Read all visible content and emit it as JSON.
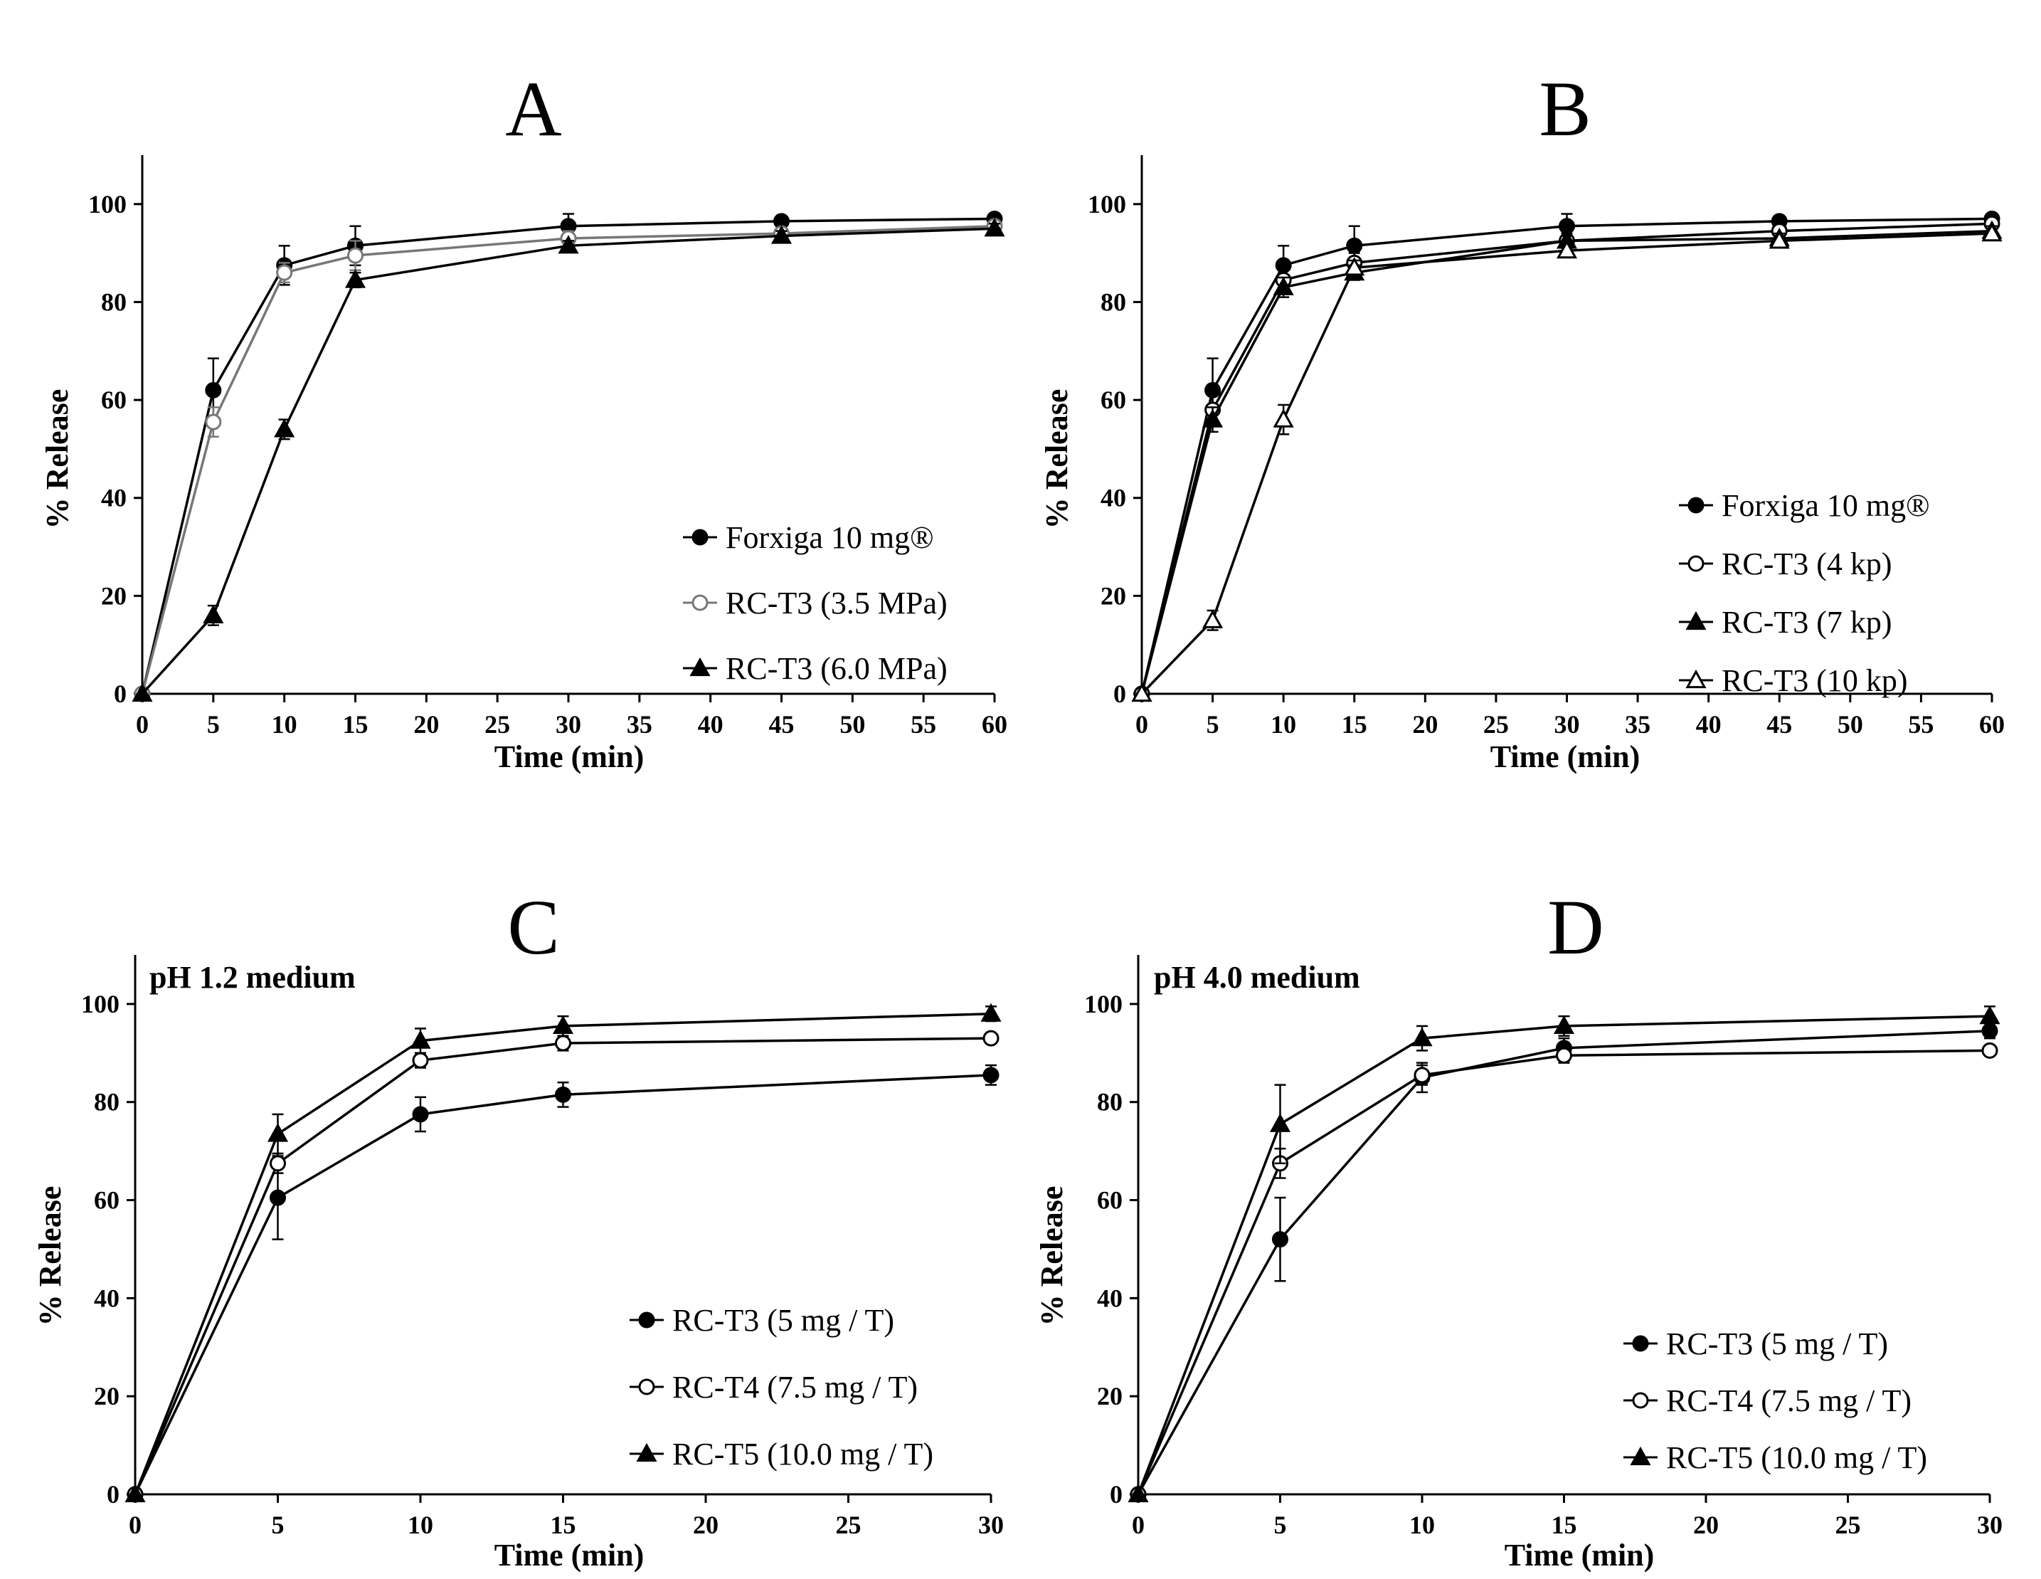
{
  "chart_data": [
    {
      "type": "line",
      "panel": "A",
      "title": "A",
      "xlabel": "Time (min)",
      "ylabel": "% Release",
      "xlim": [
        0,
        60
      ],
      "ylim": [
        0,
        110
      ],
      "xticks": [
        0,
        5,
        10,
        15,
        20,
        25,
        30,
        35,
        40,
        45,
        50,
        55,
        60
      ],
      "yticks": [
        0,
        20,
        40,
        60,
        80,
        100
      ],
      "annotation": "",
      "legend_position": "bottom-right",
      "series": [
        {
          "name": "Forxiga 10 mg®",
          "marker": "circle-filled",
          "color": "#000000",
          "x": [
            0,
            5,
            10,
            15,
            30,
            45,
            60
          ],
          "values": [
            0,
            62,
            87.5,
            91.5,
            95.5,
            96.5,
            97
          ],
          "err": [
            0,
            6.5,
            4,
            4,
            2.5,
            1,
            1
          ]
        },
        {
          "name": "RC-T3 (3.5 MPa)",
          "marker": "circle-open",
          "color": "#777777",
          "x": [
            0,
            5,
            10,
            15,
            30,
            45,
            60
          ],
          "values": [
            0,
            55.5,
            86,
            89.5,
            93,
            94,
            95.5
          ],
          "err": [
            0,
            3,
            2,
            3,
            1.5,
            1,
            1
          ]
        },
        {
          "name": "RC-T3 (6.0 MPa)",
          "marker": "triangle-filled",
          "color": "#000000",
          "x": [
            0,
            5,
            10,
            15,
            30,
            45,
            60
          ],
          "values": [
            0,
            16,
            54,
            84.5,
            91.5,
            93.5,
            95
          ],
          "err": [
            0,
            2,
            2,
            1.5,
            1,
            1,
            1
          ]
        }
      ]
    },
    {
      "type": "line",
      "panel": "B",
      "title": "B",
      "xlabel": "Time (min)",
      "ylabel": "% Release",
      "xlim": [
        0,
        60
      ],
      "ylim": [
        0,
        110
      ],
      "xticks": [
        0,
        5,
        10,
        15,
        20,
        25,
        30,
        35,
        40,
        45,
        50,
        55,
        60
      ],
      "yticks": [
        0,
        20,
        40,
        60,
        80,
        100
      ],
      "annotation": "",
      "legend_position": "bottom-right",
      "series": [
        {
          "name": "Forxiga 10 mg®",
          "marker": "circle-filled",
          "color": "#000000",
          "x": [
            0,
            5,
            10,
            15,
            30,
            45,
            60
          ],
          "values": [
            0,
            62,
            87.5,
            91.5,
            95.5,
            96.5,
            97
          ],
          "err": [
            0,
            6.5,
            4,
            4,
            2.5,
            1,
            1
          ]
        },
        {
          "name": "RC-T3 (4 kp)",
          "marker": "circle-open",
          "color": "#000000",
          "x": [
            0,
            5,
            10,
            15,
            30,
            45,
            60
          ],
          "values": [
            0,
            58,
            84.5,
            88,
            92.5,
            94.5,
            96
          ],
          "err": [
            0,
            3,
            2,
            2,
            1.5,
            1,
            1
          ]
        },
        {
          "name": "RC-T3 (7 kp)",
          "marker": "triangle-filled",
          "color": "#000000",
          "x": [
            0,
            5,
            10,
            15,
            30,
            45,
            60
          ],
          "values": [
            0,
            56,
            83,
            86,
            92.5,
            93,
            94.5
          ],
          "err": [
            0,
            2.5,
            2,
            1.5,
            1,
            1,
            1
          ]
        },
        {
          "name": "RC-T3 (10 kp)",
          "marker": "triangle-open",
          "color": "#000000",
          "x": [
            0,
            5,
            10,
            15,
            30,
            45,
            60
          ],
          "values": [
            0,
            15,
            56,
            87,
            90.5,
            92.5,
            94
          ],
          "err": [
            0,
            2,
            3,
            1.5,
            1,
            1,
            1
          ]
        }
      ]
    },
    {
      "type": "line",
      "panel": "C",
      "title": "C",
      "xlabel": "Time (min)",
      "ylabel": "% Release",
      "xlim": [
        0,
        30
      ],
      "ylim": [
        0,
        110
      ],
      "xticks": [
        0,
        5,
        10,
        15,
        20,
        25,
        30
      ],
      "yticks": [
        0,
        20,
        40,
        60,
        80,
        100
      ],
      "annotation": "pH 1.2 medium",
      "legend_position": "bottom-right",
      "series": [
        {
          "name": "RC-T3 (5 mg / T)",
          "marker": "circle-filled",
          "color": "#000000",
          "x": [
            0,
            5,
            10,
            15,
            30
          ],
          "values": [
            0,
            60.5,
            77.5,
            81.5,
            85.5
          ],
          "err": [
            0,
            8.5,
            3.5,
            2.5,
            2
          ]
        },
        {
          "name": "RC-T4 (7.5 mg / T)",
          "marker": "circle-open",
          "color": "#000000",
          "x": [
            0,
            5,
            10,
            15,
            30
          ],
          "values": [
            0,
            67.5,
            88.5,
            92,
            93
          ],
          "err": [
            0,
            2,
            1.5,
            1.5,
            1
          ]
        },
        {
          "name": "RC-T5 (10.0 mg / T)",
          "marker": "triangle-filled",
          "color": "#000000",
          "x": [
            0,
            5,
            10,
            15,
            30
          ],
          "values": [
            0,
            73.5,
            92.5,
            95.5,
            98
          ],
          "err": [
            0,
            4,
            2.5,
            2,
            1.5
          ]
        }
      ]
    },
    {
      "type": "line",
      "panel": "D",
      "title": "D",
      "xlabel": "Time (min)",
      "ylabel": "% Release",
      "xlim": [
        0,
        30
      ],
      "ylim": [
        0,
        110
      ],
      "xticks": [
        0,
        5,
        10,
        15,
        20,
        25,
        30
      ],
      "yticks": [
        0,
        20,
        40,
        60,
        80,
        100
      ],
      "annotation": "pH 4.0 medium",
      "legend_position": "bottom-right",
      "series": [
        {
          "name": "RC-T3 (5 mg / T)",
          "marker": "circle-filled",
          "color": "#000000",
          "x": [
            0,
            5,
            10,
            15,
            30
          ],
          "values": [
            0,
            52,
            85,
            91,
            94.5
          ],
          "err": [
            0,
            8.5,
            3,
            2,
            1.5
          ]
        },
        {
          "name": "RC-T4 (7.5 mg / T)",
          "marker": "circle-open",
          "color": "#000000",
          "x": [
            0,
            5,
            10,
            15,
            30
          ],
          "values": [
            0,
            67.5,
            85.5,
            89.5,
            90.5
          ],
          "err": [
            0,
            3,
            2,
            1.5,
            1
          ]
        },
        {
          "name": "RC-T5 (10.0 mg / T)",
          "marker": "triangle-filled",
          "color": "#000000",
          "x": [
            0,
            5,
            10,
            15,
            30
          ],
          "values": [
            0,
            75.5,
            93,
            95.5,
            97.5
          ],
          "err": [
            0,
            8,
            2.5,
            2,
            2
          ]
        }
      ]
    }
  ]
}
